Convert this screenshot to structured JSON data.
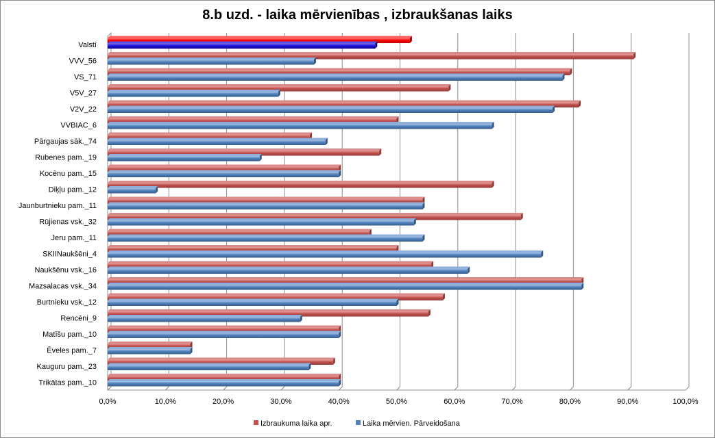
{
  "chart_data": {
    "type": "bar",
    "orientation": "horizontal",
    "title": "8.b uzd. - laika mērvienības , izbraukšanas laiks",
    "xlabel": "",
    "ylabel": "",
    "xlim": [
      0,
      100
    ],
    "xtick_labels": [
      "0,0%",
      "10,0%",
      "20,0%",
      "30,0%",
      "40,0%",
      "50,0%",
      "60,0%",
      "70,0%",
      "80,0%",
      "90,0%",
      "100,0%"
    ],
    "grid": true,
    "legend_position": "bottom",
    "categories": [
      "Valstī",
      "VVV_56",
      "VS_71",
      "V5V_27",
      "V2V_22",
      "VVBIAC_6",
      "Pārgaujas sāk._74",
      "Rubenes pam._19",
      "Kocēnu pam._15",
      "Diķļu pam._12",
      "Jaunburtnieku pam._11",
      "Rūjienas vsk._32",
      "Jeru pam._11",
      "SKIINaukšēni_4",
      "Naukšēnu vsk._16",
      "Mazsalacas vsk._34",
      "Burtnieku vsk._12",
      "Rencēni_9",
      "Matīšu pam._10",
      "Ēveles pam._7",
      "Kauguru pam._23",
      "Trikātas pam._10"
    ],
    "highlight_category": "Valstī",
    "highlight_colors": [
      "#ff0000",
      "#1a10d8"
    ],
    "series": [
      {
        "name": "Izbraukuma laika apr.",
        "color": "#c0504d",
        "values": [
          52.3,
          91.0,
          80.0,
          59.0,
          81.5,
          50.0,
          35.0,
          47.0,
          40.0,
          66.5,
          54.5,
          71.5,
          45.3,
          50.0,
          56.0,
          82.0,
          58.0,
          55.5,
          40.0,
          14.3,
          39.0,
          40.0
        ]
      },
      {
        "name": "Laika mērvien. Pārveidošana",
        "color": "#4f81bd",
        "values": [
          46.3,
          35.7,
          78.7,
          29.5,
          77.0,
          66.5,
          37.7,
          26.3,
          40.0,
          8.3,
          54.5,
          53.0,
          54.5,
          75.0,
          62.3,
          82.0,
          50.0,
          33.3,
          40.0,
          14.3,
          34.8,
          40.0
        ]
      }
    ]
  }
}
